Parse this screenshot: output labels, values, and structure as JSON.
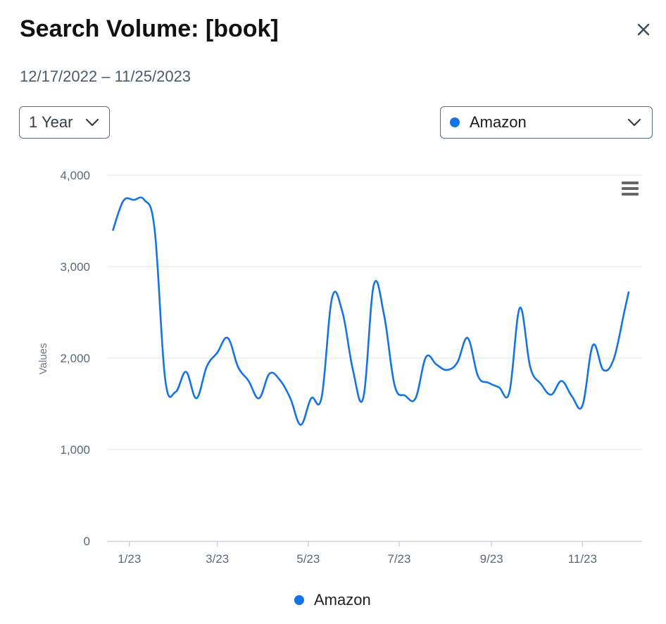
{
  "header": {
    "title": "Search Volume: [book]",
    "date_range": "12/17/2022 – 11/25/2023",
    "close_icon": "close-icon"
  },
  "controls": {
    "range_select": {
      "value": "1 Year",
      "icon": "chevron-down-icon"
    },
    "source_select": {
      "value": "Amazon",
      "color": "#1473e6",
      "icon": "chevron-down-icon"
    }
  },
  "chart_menu_icon": "hamburger-menu-icon",
  "chart_data": {
    "type": "line",
    "title": "",
    "xlabel": "",
    "ylabel": "Values",
    "ylim": [
      0,
      4000
    ],
    "yticks": [
      0,
      1000,
      2000,
      3000,
      4000
    ],
    "y_tick_labels": [
      "0",
      "1,000",
      "2,000",
      "3,000",
      "4,000"
    ],
    "xlim": [
      "2022-12-17",
      "2023-12-11"
    ],
    "x_ticks": [
      "2023-01-01",
      "2023-03-01",
      "2023-05-01",
      "2023-07-01",
      "2023-09-01",
      "2023-11-01"
    ],
    "x_tick_labels": [
      "1/23",
      "3/23",
      "5/23",
      "7/23",
      "9/23",
      "11/23"
    ],
    "grid": true,
    "legend": "bottom-center",
    "series": [
      {
        "name": "Amazon",
        "color": "#1473e6",
        "points": [
          [
            "2022-12-21",
            3400
          ],
          [
            "2022-12-28",
            3720
          ],
          [
            "2023-01-04",
            3730
          ],
          [
            "2023-01-11",
            3730
          ],
          [
            "2023-01-18",
            3400
          ],
          [
            "2023-01-25",
            1770
          ],
          [
            "2023-02-01",
            1630
          ],
          [
            "2023-02-08",
            1850
          ],
          [
            "2023-02-15",
            1560
          ],
          [
            "2023-02-22",
            1910
          ],
          [
            "2023-03-01",
            2060
          ],
          [
            "2023-03-08",
            2220
          ],
          [
            "2023-03-15",
            1900
          ],
          [
            "2023-03-22",
            1750
          ],
          [
            "2023-03-29",
            1560
          ],
          [
            "2023-04-05",
            1830
          ],
          [
            "2023-04-12",
            1760
          ],
          [
            "2023-04-19",
            1560
          ],
          [
            "2023-04-26",
            1270
          ],
          [
            "2023-05-03",
            1560
          ],
          [
            "2023-05-10",
            1570
          ],
          [
            "2023-05-17",
            2660
          ],
          [
            "2023-05-24",
            2500
          ],
          [
            "2023-05-31",
            1870
          ],
          [
            "2023-06-07",
            1570
          ],
          [
            "2023-06-14",
            2800
          ],
          [
            "2023-06-21",
            2460
          ],
          [
            "2023-06-28",
            1700
          ],
          [
            "2023-07-05",
            1590
          ],
          [
            "2023-07-12",
            1560
          ],
          [
            "2023-07-19",
            2010
          ],
          [
            "2023-07-26",
            1930
          ],
          [
            "2023-08-02",
            1870
          ],
          [
            "2023-08-09",
            1950
          ],
          [
            "2023-08-16",
            2220
          ],
          [
            "2023-08-23",
            1800
          ],
          [
            "2023-08-30",
            1730
          ],
          [
            "2023-09-06",
            1680
          ],
          [
            "2023-09-13",
            1630
          ],
          [
            "2023-09-20",
            2550
          ],
          [
            "2023-09-27",
            1900
          ],
          [
            "2023-10-04",
            1720
          ],
          [
            "2023-10-11",
            1600
          ],
          [
            "2023-10-18",
            1750
          ],
          [
            "2023-10-25",
            1580
          ],
          [
            "2023-11-01",
            1480
          ],
          [
            "2023-11-08",
            2140
          ],
          [
            "2023-11-15",
            1870
          ],
          [
            "2023-11-22",
            1990
          ],
          [
            "2023-11-29",
            2500
          ],
          [
            "2023-12-02",
            2720
          ]
        ]
      }
    ]
  }
}
